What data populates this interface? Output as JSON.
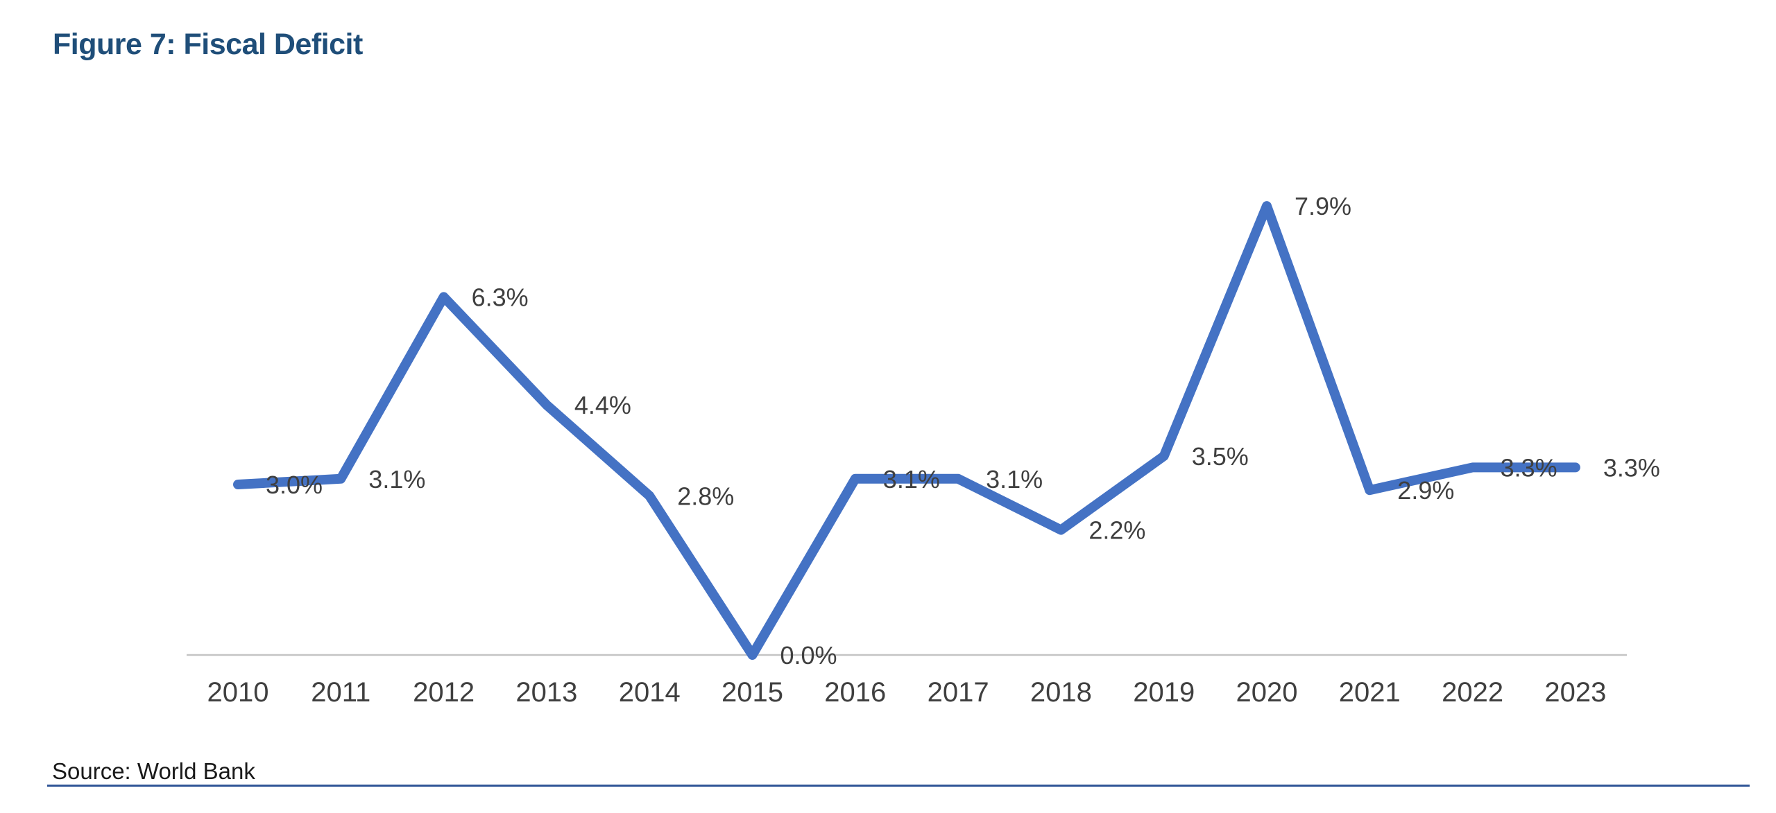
{
  "page": {
    "title": "Figure 7: Fiscal Deficit",
    "source_note": "Source: World Bank"
  },
  "colors": {
    "background": "#FFFFFF",
    "title_text": "#1F4E79",
    "line": "#4472C4",
    "axis_line": "#C4C4C4",
    "label_text": "#3F3F3F",
    "source_text": "#1A1A1A",
    "bottom_rule": "#2F5496"
  },
  "chart_data": {
    "type": "line",
    "title": "Figure 7: Fiscal Deficit",
    "xlabel": "",
    "ylabel": "",
    "unit": "%",
    "categories": [
      "2010",
      "2011",
      "2012",
      "2013",
      "2014",
      "2015",
      "2016",
      "2017",
      "2018",
      "2019",
      "2020",
      "2021",
      "2022",
      "2023"
    ],
    "values": [
      3.0,
      3.1,
      6.3,
      4.4,
      2.8,
      0.0,
      3.1,
      3.1,
      2.2,
      3.5,
      7.9,
      2.9,
      3.3,
      3.3
    ],
    "data_labels": [
      "3.0%",
      "3.1%",
      "6.3%",
      "4.4%",
      "2.8%",
      "0.0%",
      "3.1%",
      "3.1%",
      "2.2%",
      "3.5%",
      "7.9%",
      "2.9%",
      "3.3%",
      "3.3%"
    ],
    "ylim": [
      0,
      8.5
    ],
    "y_axis_visible": false,
    "x_axis_visible": true,
    "gridlines": false,
    "legend": false,
    "markers": false,
    "data_label_position": "right",
    "source": "Source: World Bank"
  }
}
